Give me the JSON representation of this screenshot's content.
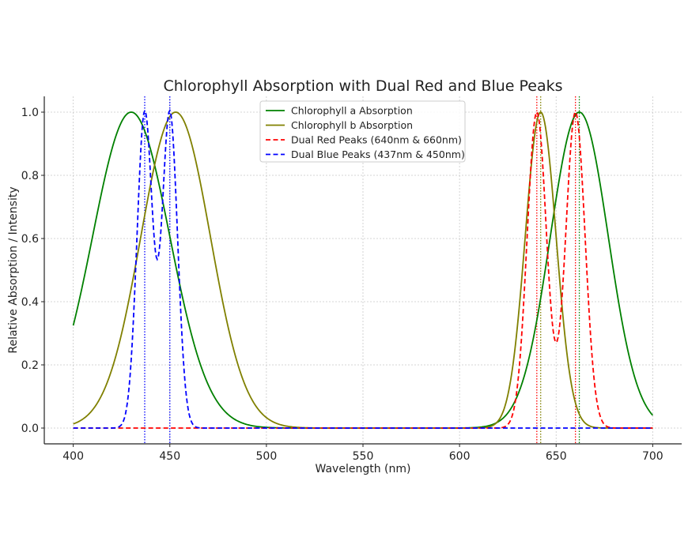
{
  "chart_data": {
    "type": "line",
    "title": "Chlorophyll Absorption with Dual Red and Blue Peaks",
    "xlabel": "Wavelength (nm)",
    "ylabel": "Relative Absorption / Intensity",
    "xlim": [
      385,
      715
    ],
    "ylim": [
      -0.05,
      1.05
    ],
    "xticks": [
      400,
      450,
      500,
      550,
      600,
      650,
      700
    ],
    "yticks": [
      0.0,
      0.2,
      0.4,
      0.6,
      0.8,
      1.0
    ],
    "xtick_labels": [
      "400",
      "450",
      "500",
      "550",
      "600",
      "650",
      "700"
    ],
    "ytick_labels": [
      "0.0",
      "0.2",
      "0.4",
      "0.6",
      "0.8",
      "1.0"
    ],
    "grid": true,
    "legend_position": "top-center",
    "x_range": [
      400,
      700
    ],
    "series": [
      {
        "name": "Chlorophyll a Absorption",
        "color": "#008000",
        "style": "solid",
        "combine": "max",
        "peaks": [
          {
            "center": 430,
            "sigma": 20
          },
          {
            "center": 662,
            "sigma": 15
          }
        ]
      },
      {
        "name": "Chlorophyll b Absorption",
        "color": "#808000",
        "style": "solid",
        "combine": "max",
        "peaks": [
          {
            "center": 453,
            "sigma": 18
          },
          {
            "center": 642,
            "sigma": 8
          }
        ]
      },
      {
        "name": "Dual Red Peaks (640nm & 660nm)",
        "color": "#ff0000",
        "style": "dashed",
        "combine": "sum",
        "peaks": [
          {
            "center": 640,
            "sigma": 5
          },
          {
            "center": 660,
            "sigma": 5
          }
        ]
      },
      {
        "name": "Dual Blue Peaks (437nm & 450nm)",
        "color": "#0000ff",
        "style": "dashed",
        "combine": "sum",
        "peaks": [
          {
            "center": 437,
            "sigma": 4
          },
          {
            "center": 450,
            "sigma": 4
          }
        ]
      }
    ],
    "vertical_markers": [
      {
        "x": 437,
        "color": "#0000ff"
      },
      {
        "x": 450,
        "color": "#0000ff"
      },
      {
        "x": 640,
        "color": "#ff0000"
      },
      {
        "x": 660,
        "color": "#ff0000"
      },
      {
        "x": 642,
        "color": "#808000"
      },
      {
        "x": 662,
        "color": "#008000"
      }
    ]
  }
}
